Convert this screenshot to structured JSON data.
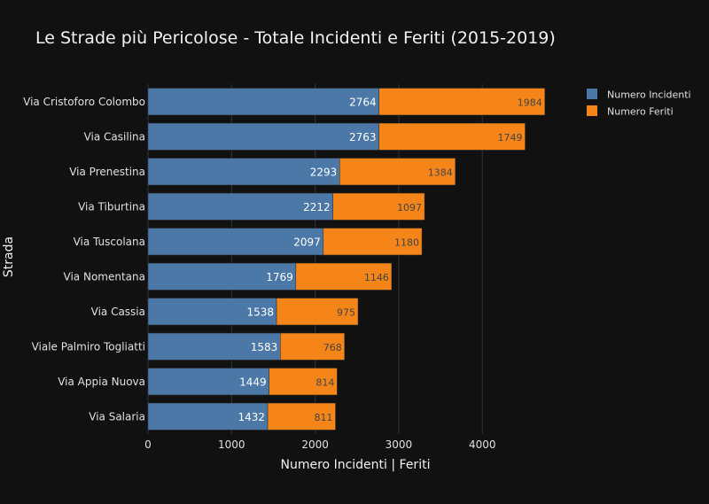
{
  "chart_data": {
    "type": "bar",
    "orientation": "horizontal",
    "stacked": true,
    "title": "Le Strade più Pericolose - Totale Incidenti e Feriti (2015-2019)",
    "xlabel": "Numero Incidenti | Feriti",
    "ylabel": "Strada",
    "xlim": [
      0,
      4920
    ],
    "x_ticks": [
      0,
      1000,
      2000,
      3000,
      4000
    ],
    "x_tick_labels": [
      "0",
      "1000",
      "2000",
      "3000",
      "4000"
    ],
    "grid": true,
    "legend_position": "top-right",
    "categories": [
      "Via Cristoforo Colombo",
      "Via Casilina",
      "Via Prenestina",
      "Via Tiburtina",
      "Via Tuscolana",
      "Via Nomentana",
      "Via Cassia",
      "Viale Palmiro Togliatti",
      "Via Appia Nuova",
      "Via Salaria"
    ],
    "series": [
      {
        "name": "Numero Incidenti",
        "color": "#4c78a8",
        "label_color": "#ffffff",
        "values": [
          2764,
          2763,
          2293,
          2212,
          2097,
          1769,
          1538,
          1583,
          1449,
          1432
        ]
      },
      {
        "name": "Numero Feriti",
        "color": "#f58518",
        "label_color": "#444444",
        "values": [
          1984,
          1749,
          1384,
          1097,
          1180,
          1146,
          975,
          768,
          814,
          811
        ]
      }
    ]
  },
  "colors": {
    "background": "#111111",
    "grid": "#2f3440",
    "text": "#f2f2f2",
    "axis_text": "#e0e0e0"
  }
}
